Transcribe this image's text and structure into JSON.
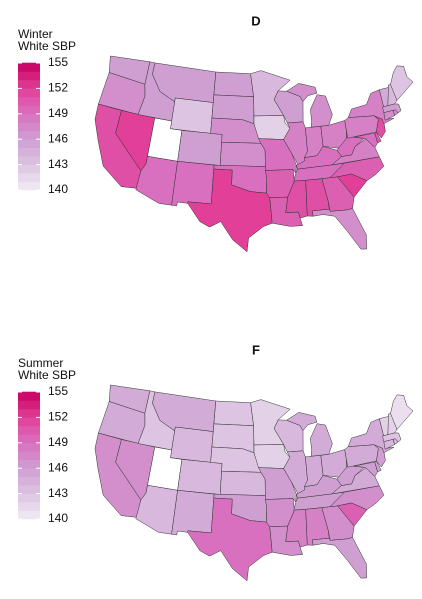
{
  "chart_data": [
    {
      "type": "choropleth",
      "title": "D",
      "legend_title": [
        "Winter",
        "White SBP"
      ],
      "clim": [
        140,
        155
      ],
      "ticks": [
        140,
        143,
        146,
        149,
        152,
        155
      ],
      "colors": [
        "#f2ecf5",
        "#dcc4e2",
        "#cf9fd2",
        "#d970bf",
        "#e23f98",
        "#c6005f"
      ],
      "missing_color": "#ffffff",
      "values": [
        146,
        147,
        151,
        152,
        146,
        146,
        143,
        null,
        146,
        149,
        149,
        146,
        146,
        147,
        147,
        149,
        152,
        144,
        142,
        149,
        150,
        150,
        146,
        148,
        147,
        148,
        148,
        149,
        149,
        151,
        151,
        150,
        147,
        152,
        150,
        148,
        149,
        149,
        150,
        148,
        151,
        148,
        147,
        147,
        146,
        145,
        144,
        143
      ]
    },
    {
      "type": "choropleth",
      "title": "F",
      "legend_title": [
        "Summer",
        "White SBP"
      ],
      "clim": [
        140,
        155
      ],
      "ticks": [
        140,
        143,
        146,
        149,
        152,
        155
      ],
      "colors": [
        "#f2ecf5",
        "#dcc4e2",
        "#cf9fd2",
        "#d970bf",
        "#e23f98",
        "#c6005f"
      ],
      "missing_color": "#ffffff",
      "values": [
        145,
        145,
        147,
        147,
        143,
        145,
        144,
        null,
        144,
        144,
        145,
        143,
        143,
        143,
        144,
        146,
        149,
        142,
        142,
        146,
        147,
        147,
        144,
        145,
        145,
        145,
        145,
        146,
        146,
        148,
        148,
        147,
        146,
        150,
        147,
        145,
        146,
        146,
        146,
        145,
        146,
        145,
        144,
        144,
        143,
        142,
        142,
        141
      ]
    }
  ]
}
